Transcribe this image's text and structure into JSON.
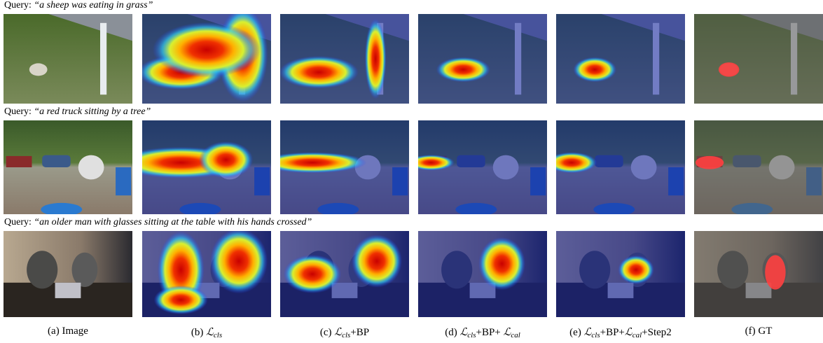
{
  "queries": [
    {
      "label": "Query:",
      "text": "“a sheep was eating in grass”"
    },
    {
      "label": "Query:",
      "text": "“a red truck sitting by a tree”"
    },
    {
      "label": "Query:",
      "text": "“an older man with glasses sitting at the table with his hands crossed”"
    }
  ],
  "captions": [
    [
      {
        "text": "(a) Image"
      }
    ],
    [
      {
        "text": "(b) "
      },
      {
        "symbol": "ℒ",
        "sub": "cls"
      }
    ],
    [
      {
        "text": "(c) "
      },
      {
        "symbol": "ℒ",
        "sub": "cls"
      },
      {
        "text": "+BP"
      }
    ],
    [
      {
        "text": "(d) "
      },
      {
        "symbol": "ℒ",
        "sub": "cls"
      },
      {
        "text": "+BP+ "
      },
      {
        "symbol": "ℒ",
        "sub": "cal"
      }
    ],
    [
      {
        "text": "(e) "
      },
      {
        "symbol": "ℒ",
        "sub": "cls"
      },
      {
        "text": "+BP+"
      },
      {
        "symbol": "ℒ",
        "sub": "cal"
      },
      {
        "text": "+Step2"
      }
    ],
    [
      {
        "text": "(f) GT"
      }
    ]
  ]
}
